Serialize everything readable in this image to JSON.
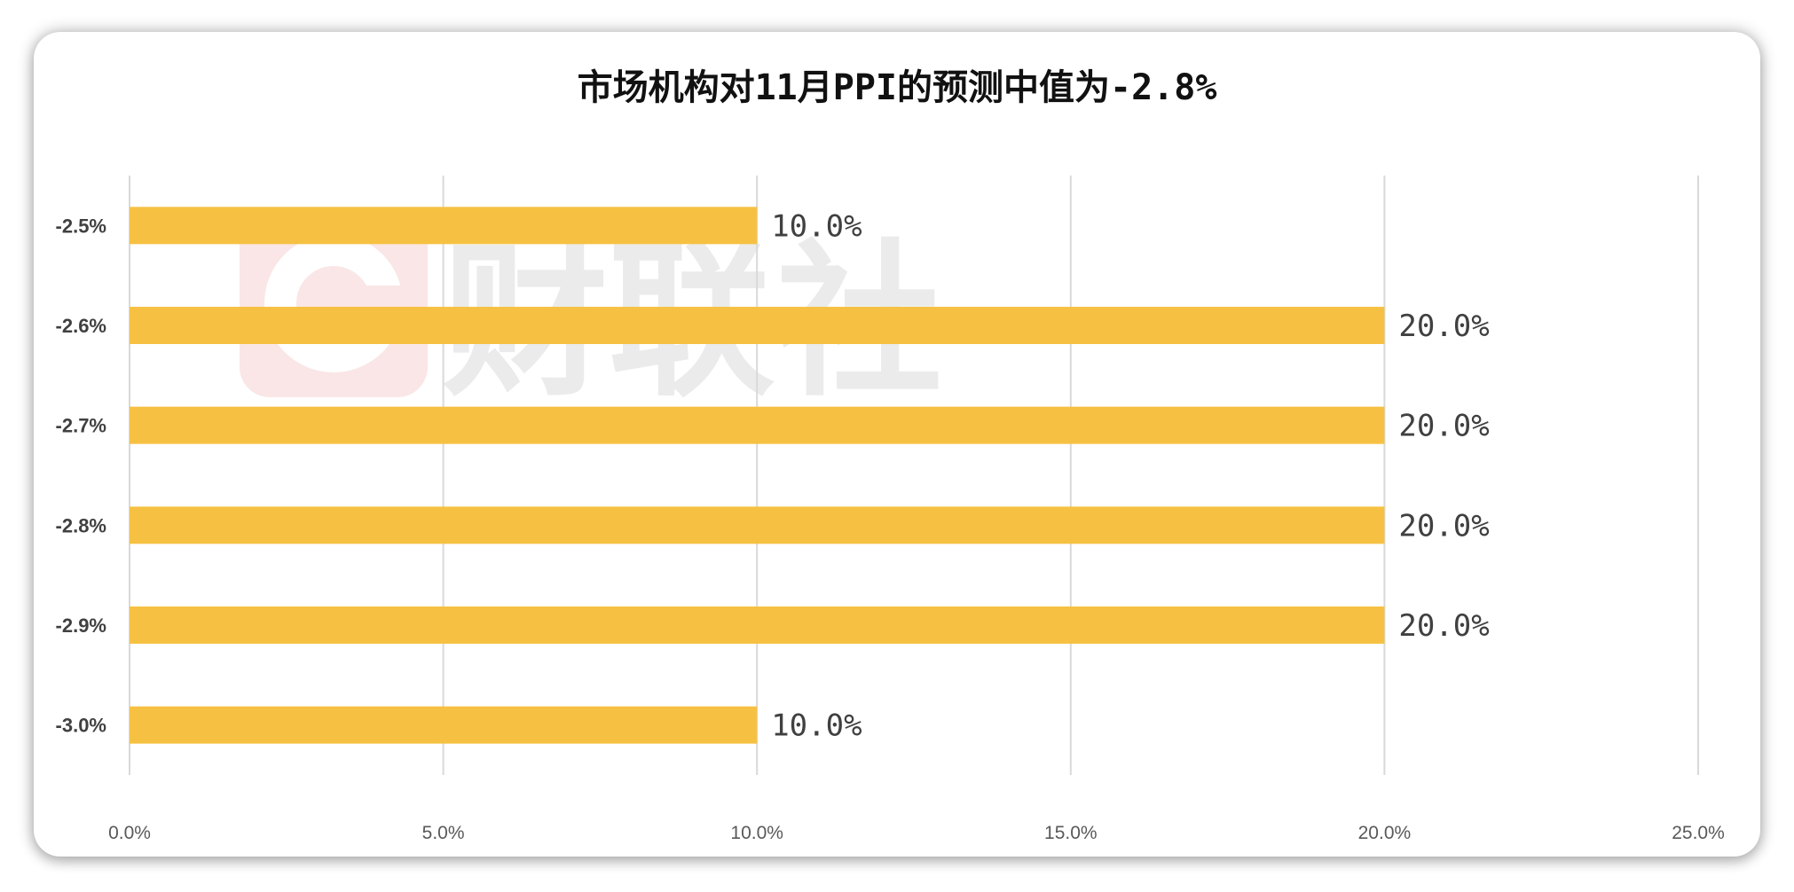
{
  "chart_data": {
    "type": "bar",
    "orientation": "horizontal",
    "title": "市场机构对11月PPI的预测中值为-2.8%",
    "categories": [
      "-2.5%",
      "-2.6%",
      "-2.7%",
      "-2.8%",
      "-2.9%",
      "-3.0%"
    ],
    "values": [
      10.0,
      20.0,
      20.0,
      20.0,
      20.0,
      10.0
    ],
    "data_labels": [
      "10.0%",
      "20.0%",
      "20.0%",
      "20.0%",
      "20.0%",
      "10.0%"
    ],
    "xlim": [
      0,
      25
    ],
    "x_ticks": [
      0,
      5,
      10,
      15,
      20,
      25
    ],
    "x_tick_labels": [
      "0.0%",
      "5.0%",
      "10.0%",
      "15.0%",
      "20.0%",
      "25.0%"
    ],
    "grid": true,
    "bar_color": "#F6C142"
  },
  "watermark": {
    "text": "财联社"
  }
}
